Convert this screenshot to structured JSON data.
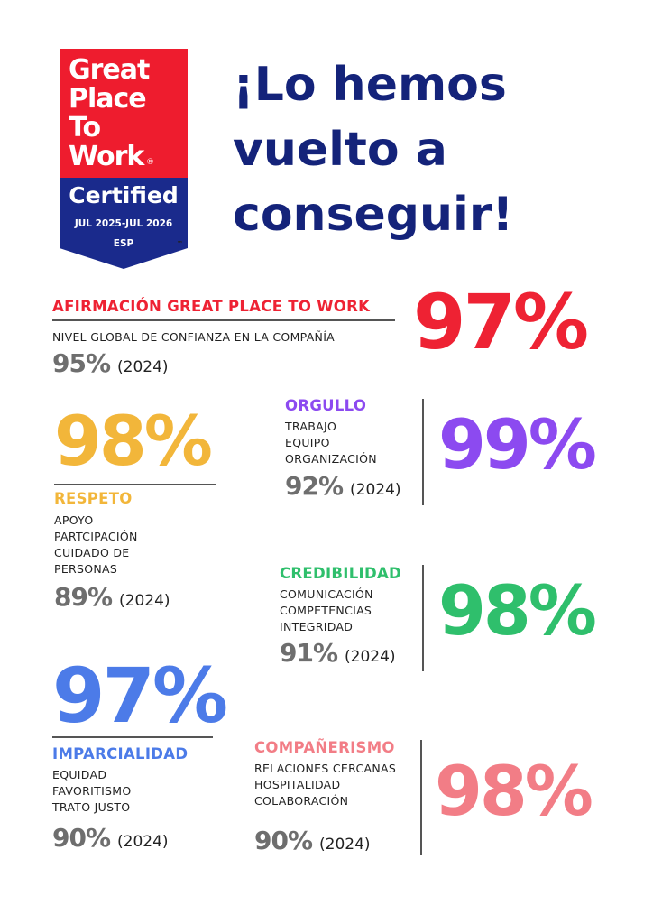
{
  "badge": {
    "logo_lines": [
      "Great",
      "Place",
      "To",
      "Work"
    ],
    "registered": "®",
    "certified": "Certified",
    "dates": "JUL 2025-JUL 2026",
    "country": "ESP",
    "trademark": "™",
    "colors": {
      "red": "#ee1c2e",
      "blue": "#1a2a8c"
    }
  },
  "headline": {
    "lines": [
      "¡Lo hemos",
      "vuelto a",
      "conseguir!"
    ],
    "color": "#14237a"
  },
  "previous_year_label": "(2024)",
  "sections": {
    "afirmacion": {
      "title": "AFIRMACIÓN GREAT PLACE TO WORK",
      "items": [
        "NIVEL GLOBAL DE CONFIANZA EN LA COMPAÑÍA"
      ],
      "value": "97%",
      "previous": "95%",
      "color": "#ee2233"
    },
    "respeto": {
      "title": "RESPETO",
      "items": [
        "APOYO",
        "PARTCIPACIÓN",
        "CUIDADO DE",
        "PERSONAS"
      ],
      "value": "98%",
      "previous": "89%",
      "color": "#f2b63a"
    },
    "orgullo": {
      "title": "ORGULLO",
      "items": [
        "TRABAJO",
        "EQUIPO",
        "ORGANIZACIÓN"
      ],
      "value": "99%",
      "previous": "92%",
      "color": "#8c4af0"
    },
    "credibilidad": {
      "title": "CREDIBILIDAD",
      "items": [
        "COMUNICACIÓN",
        "COMPETENCIAS",
        "INTEGRIDAD"
      ],
      "value": "98%",
      "previous": "91%",
      "color": "#2fbf6c"
    },
    "imparcialidad": {
      "title": "IMPARCIALIDAD",
      "items": [
        "EQUIDAD",
        "FAVORITISMO",
        "TRATO JUSTO"
      ],
      "value": "97%",
      "previous": "90%",
      "color": "#4c7be8"
    },
    "companerismo": {
      "title": "COMPAÑERISMO",
      "items": [
        "RELACIONES CERCANAS",
        "HOSPITALIDAD",
        "COLABORACIÓN"
      ],
      "value": "98%",
      "previous": "90%",
      "color": "#f27d86"
    }
  }
}
